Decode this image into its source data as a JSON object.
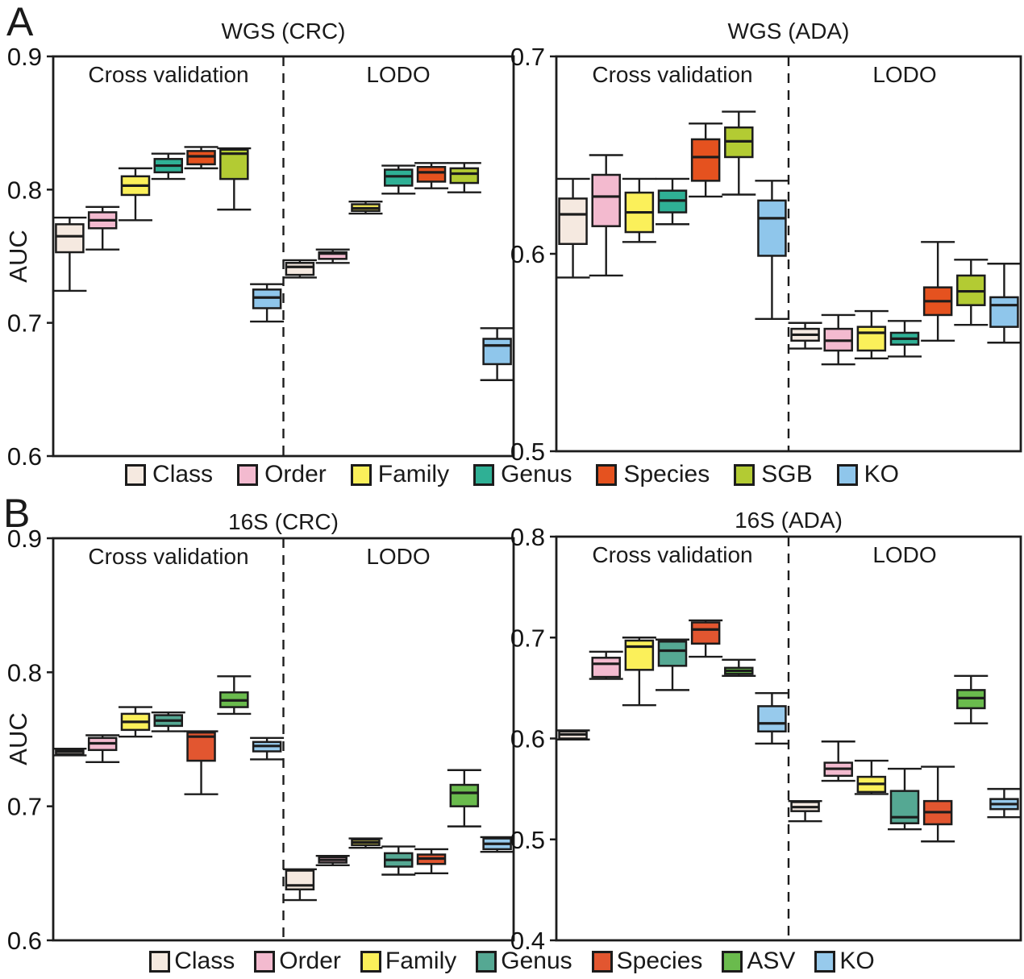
{
  "page": {
    "panel_a_letter": "A",
    "panel_b_letter": "B"
  },
  "chart_data": [
    {
      "id": "wgs-crc",
      "type": "box",
      "title": "WGS (CRC)",
      "ylabel": "AUC",
      "ylim": [
        0.6,
        0.9
      ],
      "yticks": [
        0.6,
        0.7,
        0.8,
        0.9
      ],
      "grid": false,
      "sections": [
        {
          "label": "Cross validation",
          "boxes": [
            {
              "label": "Class",
              "color": "#f5e9e0",
              "whislo": 0.724,
              "q1": 0.753,
              "med": 0.765,
              "q3": 0.774,
              "whishi": 0.779
            },
            {
              "label": "Order",
              "color": "#f3bacf",
              "whislo": 0.755,
              "q1": 0.771,
              "med": 0.777,
              "q3": 0.783,
              "whishi": 0.787
            },
            {
              "label": "Family",
              "color": "#fbf05a",
              "whislo": 0.777,
              "q1": 0.796,
              "med": 0.803,
              "q3": 0.81,
              "whishi": 0.816
            },
            {
              "label": "Genus",
              "color": "#2fb095",
              "whislo": 0.808,
              "q1": 0.813,
              "med": 0.818,
              "q3": 0.823,
              "whishi": 0.827
            },
            {
              "label": "Species",
              "color": "#e5521f",
              "whislo": 0.816,
              "q1": 0.819,
              "med": 0.825,
              "q3": 0.829,
              "whishi": 0.832
            },
            {
              "label": "SGB",
              "color": "#b3cb33",
              "whislo": 0.785,
              "q1": 0.808,
              "med": 0.827,
              "q3": 0.83,
              "whishi": 0.831
            },
            {
              "label": "KO",
              "color": "#8fc6eb",
              "whislo": 0.701,
              "q1": 0.711,
              "med": 0.719,
              "q3": 0.725,
              "whishi": 0.729
            }
          ]
        },
        {
          "label": "LODO",
          "boxes": [
            {
              "label": "Class",
              "color": "#f5e9e0",
              "whislo": 0.734,
              "q1": 0.736,
              "med": 0.742,
              "q3": 0.745,
              "whishi": 0.747
            },
            {
              "label": "Order",
              "color": "#f3bacf",
              "whislo": 0.745,
              "q1": 0.748,
              "med": 0.752,
              "q3": 0.753,
              "whishi": 0.755
            },
            {
              "label": "Family",
              "color": "#fbf05a",
              "whislo": 0.782,
              "q1": 0.784,
              "med": 0.786,
              "q3": 0.789,
              "whishi": 0.791
            },
            {
              "label": "Genus",
              "color": "#2fb095",
              "whislo": 0.797,
              "q1": 0.803,
              "med": 0.81,
              "q3": 0.815,
              "whishi": 0.818
            },
            {
              "label": "Species",
              "color": "#e5521f",
              "whislo": 0.801,
              "q1": 0.806,
              "med": 0.813,
              "q3": 0.817,
              "whishi": 0.82
            },
            {
              "label": "SGB",
              "color": "#b3cb33",
              "whislo": 0.798,
              "q1": 0.805,
              "med": 0.812,
              "q3": 0.816,
              "whishi": 0.82
            },
            {
              "label": "KO",
              "color": "#8fc6eb",
              "whislo": 0.657,
              "q1": 0.669,
              "med": 0.683,
              "q3": 0.688,
              "whishi": 0.696
            }
          ]
        }
      ]
    },
    {
      "id": "wgs-ada",
      "type": "box",
      "title": "WGS (ADA)",
      "ylabel": null,
      "ylim": [
        0.5,
        0.7
      ],
      "yticks": [
        0.5,
        0.6,
        0.7
      ],
      "grid": false,
      "sections": [
        {
          "label": "Cross validation",
          "boxes": [
            {
              "label": "Class",
              "color": "#f5e9e0",
              "whislo": 0.588,
              "q1": 0.605,
              "med": 0.62,
              "q3": 0.628,
              "whishi": 0.638
            },
            {
              "label": "Order",
              "color": "#f3bacf",
              "whislo": 0.589,
              "q1": 0.614,
              "med": 0.629,
              "q3": 0.64,
              "whishi": 0.65
            },
            {
              "label": "Family",
              "color": "#fbf05a",
              "whislo": 0.606,
              "q1": 0.611,
              "med": 0.621,
              "q3": 0.631,
              "whishi": 0.638
            },
            {
              "label": "Genus",
              "color": "#2fb095",
              "whislo": 0.615,
              "q1": 0.621,
              "med": 0.627,
              "q3": 0.632,
              "whishi": 0.638
            },
            {
              "label": "Species",
              "color": "#e5521f",
              "whislo": 0.629,
              "q1": 0.637,
              "med": 0.649,
              "q3": 0.658,
              "whishi": 0.666
            },
            {
              "label": "SGB",
              "color": "#b3cb33",
              "whislo": 0.63,
              "q1": 0.649,
              "med": 0.657,
              "q3": 0.664,
              "whishi": 0.672
            },
            {
              "label": "KO",
              "color": "#8fc6eb",
              "whislo": 0.567,
              "q1": 0.599,
              "med": 0.618,
              "q3": 0.627,
              "whishi": 0.637
            }
          ]
        },
        {
          "label": "LODO",
          "boxes": [
            {
              "label": "Class",
              "color": "#f5e9e0",
              "whislo": 0.552,
              "q1": 0.556,
              "med": 0.559,
              "q3": 0.562,
              "whishi": 0.565
            },
            {
              "label": "Order",
              "color": "#f3bacf",
              "whislo": 0.544,
              "q1": 0.551,
              "med": 0.556,
              "q3": 0.562,
              "whishi": 0.569
            },
            {
              "label": "Family",
              "color": "#fbf05a",
              "whislo": 0.547,
              "q1": 0.551,
              "med": 0.56,
              "q3": 0.563,
              "whishi": 0.571
            },
            {
              "label": "Genus",
              "color": "#2fb095",
              "whislo": 0.548,
              "q1": 0.554,
              "med": 0.557,
              "q3": 0.56,
              "whishi": 0.566
            },
            {
              "label": "Species",
              "color": "#e5521f",
              "whislo": 0.556,
              "q1": 0.569,
              "med": 0.576,
              "q3": 0.583,
              "whishi": 0.606
            },
            {
              "label": "SGB",
              "color": "#b3cb33",
              "whislo": 0.564,
              "q1": 0.574,
              "med": 0.581,
              "q3": 0.589,
              "whishi": 0.597
            },
            {
              "label": "KO",
              "color": "#8fc6eb",
              "whislo": 0.555,
              "q1": 0.563,
              "med": 0.574,
              "q3": 0.578,
              "whishi": 0.595
            }
          ]
        }
      ]
    },
    {
      "id": "16s-crc",
      "type": "box",
      "title": "16S (CRC)",
      "ylabel": "AUC",
      "ylim": [
        0.6,
        0.9
      ],
      "yticks": [
        0.6,
        0.7,
        0.8,
        0.9
      ],
      "grid": false,
      "sections": [
        {
          "label": "Cross validation",
          "boxes": [
            {
              "label": "Class",
              "color": "#f5e9e0",
              "whislo": 0.738,
              "q1": 0.739,
              "med": 0.741,
              "q3": 0.742,
              "whishi": 0.743
            },
            {
              "label": "Order",
              "color": "#f3bacf",
              "whislo": 0.733,
              "q1": 0.742,
              "med": 0.747,
              "q3": 0.751,
              "whishi": 0.753
            },
            {
              "label": "Family",
              "color": "#fbf05a",
              "whislo": 0.752,
              "q1": 0.757,
              "med": 0.763,
              "q3": 0.769,
              "whishi": 0.774
            },
            {
              "label": "Genus",
              "color": "#55a893",
              "whislo": 0.756,
              "q1": 0.76,
              "med": 0.764,
              "q3": 0.768,
              "whishi": 0.77
            },
            {
              "label": "Species",
              "color": "#e25630",
              "whislo": 0.709,
              "q1": 0.734,
              "med": 0.752,
              "q3": 0.755,
              "whishi": 0.756
            },
            {
              "label": "ASV",
              "color": "#6abb4d",
              "whislo": 0.769,
              "q1": 0.774,
              "med": 0.779,
              "q3": 0.785,
              "whishi": 0.797
            },
            {
              "label": "KO",
              "color": "#97caec",
              "whislo": 0.735,
              "q1": 0.741,
              "med": 0.745,
              "q3": 0.748,
              "whishi": 0.751
            }
          ]
        },
        {
          "label": "LODO",
          "boxes": [
            {
              "label": "Class",
              "color": "#f5e9e0",
              "whislo": 0.63,
              "q1": 0.638,
              "med": 0.641,
              "q3": 0.652,
              "whishi": 0.653
            },
            {
              "label": "Order",
              "color": "#f3bacf",
              "whislo": 0.656,
              "q1": 0.658,
              "med": 0.66,
              "q3": 0.662,
              "whishi": 0.663
            },
            {
              "label": "Family",
              "color": "#fbf05a",
              "whislo": 0.669,
              "q1": 0.671,
              "med": 0.673,
              "q3": 0.675,
              "whishi": 0.676
            },
            {
              "label": "Genus",
              "color": "#55a893",
              "whislo": 0.649,
              "q1": 0.655,
              "med": 0.66,
              "q3": 0.665,
              "whishi": 0.67
            },
            {
              "label": "Species",
              "color": "#e25630",
              "whislo": 0.65,
              "q1": 0.657,
              "med": 0.661,
              "q3": 0.664,
              "whishi": 0.668
            },
            {
              "label": "ASV",
              "color": "#6abb4d",
              "whislo": 0.685,
              "q1": 0.7,
              "med": 0.71,
              "q3": 0.716,
              "whishi": 0.727
            },
            {
              "label": "KO",
              "color": "#97caec",
              "whislo": 0.666,
              "q1": 0.668,
              "med": 0.672,
              "q3": 0.676,
              "whishi": 0.677
            }
          ]
        }
      ]
    },
    {
      "id": "16s-ada",
      "type": "box",
      "title": "16S (ADA)",
      "ylabel": null,
      "ylim": [
        0.4,
        0.8
      ],
      "yticks": [
        0.4,
        0.5,
        0.6,
        0.7,
        0.8
      ],
      "grid": false,
      "sections": [
        {
          "label": "Cross validation",
          "boxes": [
            {
              "label": "Class",
              "color": "#f5e9e0",
              "whislo": 0.599,
              "q1": 0.6,
              "med": 0.604,
              "q3": 0.607,
              "whishi": 0.608
            },
            {
              "label": "Order",
              "color": "#f3bacf",
              "whislo": 0.659,
              "q1": 0.661,
              "med": 0.674,
              "q3": 0.68,
              "whishi": 0.686
            },
            {
              "label": "Family",
              "color": "#fbf05a",
              "whislo": 0.633,
              "q1": 0.668,
              "med": 0.691,
              "q3": 0.697,
              "whishi": 0.7
            },
            {
              "label": "Genus",
              "color": "#55a893",
              "whislo": 0.648,
              "q1": 0.672,
              "med": 0.687,
              "q3": 0.696,
              "whishi": 0.698
            },
            {
              "label": "Species",
              "color": "#e25630",
              "whislo": 0.681,
              "q1": 0.694,
              "med": 0.708,
              "q3": 0.715,
              "whishi": 0.717
            },
            {
              "label": "ASV",
              "color": "#6abb4d",
              "whislo": 0.662,
              "q1": 0.664,
              "med": 0.667,
              "q3": 0.67,
              "whishi": 0.678
            },
            {
              "label": "KO",
              "color": "#97caec",
              "whislo": 0.595,
              "q1": 0.607,
              "med": 0.615,
              "q3": 0.632,
              "whishi": 0.645
            }
          ]
        },
        {
          "label": "LODO",
          "boxes": [
            {
              "label": "Class",
              "color": "#f5e9e0",
              "whislo": 0.518,
              "q1": 0.528,
              "med": 0.532,
              "q3": 0.537,
              "whishi": 0.538
            },
            {
              "label": "Order",
              "color": "#f3bacf",
              "whislo": 0.558,
              "q1": 0.563,
              "med": 0.57,
              "q3": 0.576,
              "whishi": 0.597
            },
            {
              "label": "Family",
              "color": "#fbf05a",
              "whislo": 0.545,
              "q1": 0.547,
              "med": 0.555,
              "q3": 0.562,
              "whishi": 0.578
            },
            {
              "label": "Genus",
              "color": "#55a893",
              "whislo": 0.51,
              "q1": 0.516,
              "med": 0.522,
              "q3": 0.548,
              "whishi": 0.57
            },
            {
              "label": "Species",
              "color": "#e25630",
              "whislo": 0.498,
              "q1": 0.515,
              "med": 0.527,
              "q3": 0.538,
              "whishi": 0.572
            },
            {
              "label": "ASV",
              "color": "#6abb4d",
              "whislo": 0.615,
              "q1": 0.63,
              "med": 0.64,
              "q3": 0.648,
              "whishi": 0.662
            },
            {
              "label": "KO",
              "color": "#97caec",
              "whislo": 0.522,
              "q1": 0.53,
              "med": 0.535,
              "q3": 0.54,
              "whishi": 0.55
            }
          ]
        }
      ]
    }
  ],
  "legends": [
    {
      "id": "legend-a",
      "items": [
        {
          "label": "Class",
          "color": "#f5e9e0"
        },
        {
          "label": "Order",
          "color": "#f3bacf"
        },
        {
          "label": "Family",
          "color": "#fbf05a"
        },
        {
          "label": "Genus",
          "color": "#2fb095"
        },
        {
          "label": "Species",
          "color": "#e5521f"
        },
        {
          "label": "SGB",
          "color": "#b3cb33"
        },
        {
          "label": "KO",
          "color": "#8fc6eb"
        }
      ]
    },
    {
      "id": "legend-b",
      "items": [
        {
          "label": "Class",
          "color": "#f5e9e0"
        },
        {
          "label": "Order",
          "color": "#f3bacf"
        },
        {
          "label": "Family",
          "color": "#fbf05a"
        },
        {
          "label": "Genus",
          "color": "#55a893"
        },
        {
          "label": "Species",
          "color": "#e25630"
        },
        {
          "label": "ASV",
          "color": "#6abb4d"
        },
        {
          "label": "KO",
          "color": "#97caec"
        }
      ]
    }
  ]
}
